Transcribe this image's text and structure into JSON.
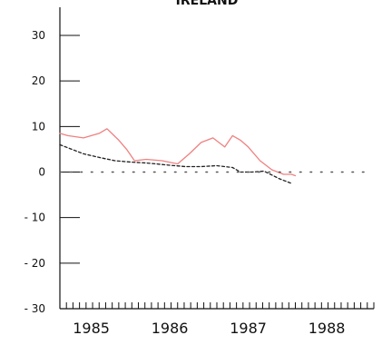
{
  "chart_data": {
    "type": "line",
    "title": "IRELAND",
    "ylim": [
      -30,
      30
    ],
    "yticks": [
      30,
      20,
      10,
      0,
      -10,
      -20,
      -30
    ],
    "ytick_labels": [
      "30",
      "20",
      "10",
      "0",
      "- 10",
      "- 20",
      "- 30"
    ],
    "xlim": [
      1984.6,
      1988.6
    ],
    "xticks": [
      1985,
      1986,
      1987,
      1988
    ],
    "xtick_labels": [
      "1985",
      "1986",
      "1987",
      "1988"
    ],
    "grid": false,
    "series": [
      {
        "color": "#f08080",
        "style": "solid",
        "x": [
          1984.6,
          1984.7,
          1984.9,
          1985.1,
          1985.2,
          1985.35,
          1985.45,
          1985.55,
          1985.7,
          1985.9,
          1986.1,
          1986.25,
          1986.4,
          1986.55,
          1986.7,
          1986.8,
          1986.9,
          1987.0,
          1987.15,
          1987.3,
          1987.45,
          1987.55,
          1987.6
        ],
        "y": [
          8.5,
          8.0,
          7.5,
          8.5,
          9.5,
          7.0,
          5.0,
          2.5,
          2.8,
          2.5,
          1.8,
          4.0,
          6.5,
          7.5,
          5.5,
          8.0,
          7.0,
          5.5,
          2.5,
          0.5,
          -0.5,
          -0.5,
          -0.8
        ]
      },
      {
        "color": "#222222",
        "style": "dashed",
        "x": [
          1984.6,
          1984.75,
          1984.9,
          1985.1,
          1985.3,
          1985.5,
          1985.7,
          1986.0,
          1986.2,
          1986.4,
          1986.6,
          1986.8,
          1986.9,
          1987.05,
          1987.2,
          1987.4,
          1987.55
        ],
        "y": [
          6.0,
          5.0,
          4.0,
          3.2,
          2.5,
          2.2,
          2.0,
          1.5,
          1.2,
          1.2,
          1.4,
          1.0,
          0.0,
          0.0,
          0.2,
          -1.5,
          -2.5
        ]
      },
      {
        "color": "#555555",
        "style": "dotted",
        "x": [
          1984.6,
          1985.0,
          1985.5,
          1986.0,
          1986.5,
          1987.0,
          1987.5,
          1988.0,
          1988.5
        ],
        "y": [
          0,
          0,
          0,
          0,
          0,
          0,
          0,
          0,
          0
        ]
      }
    ]
  }
}
